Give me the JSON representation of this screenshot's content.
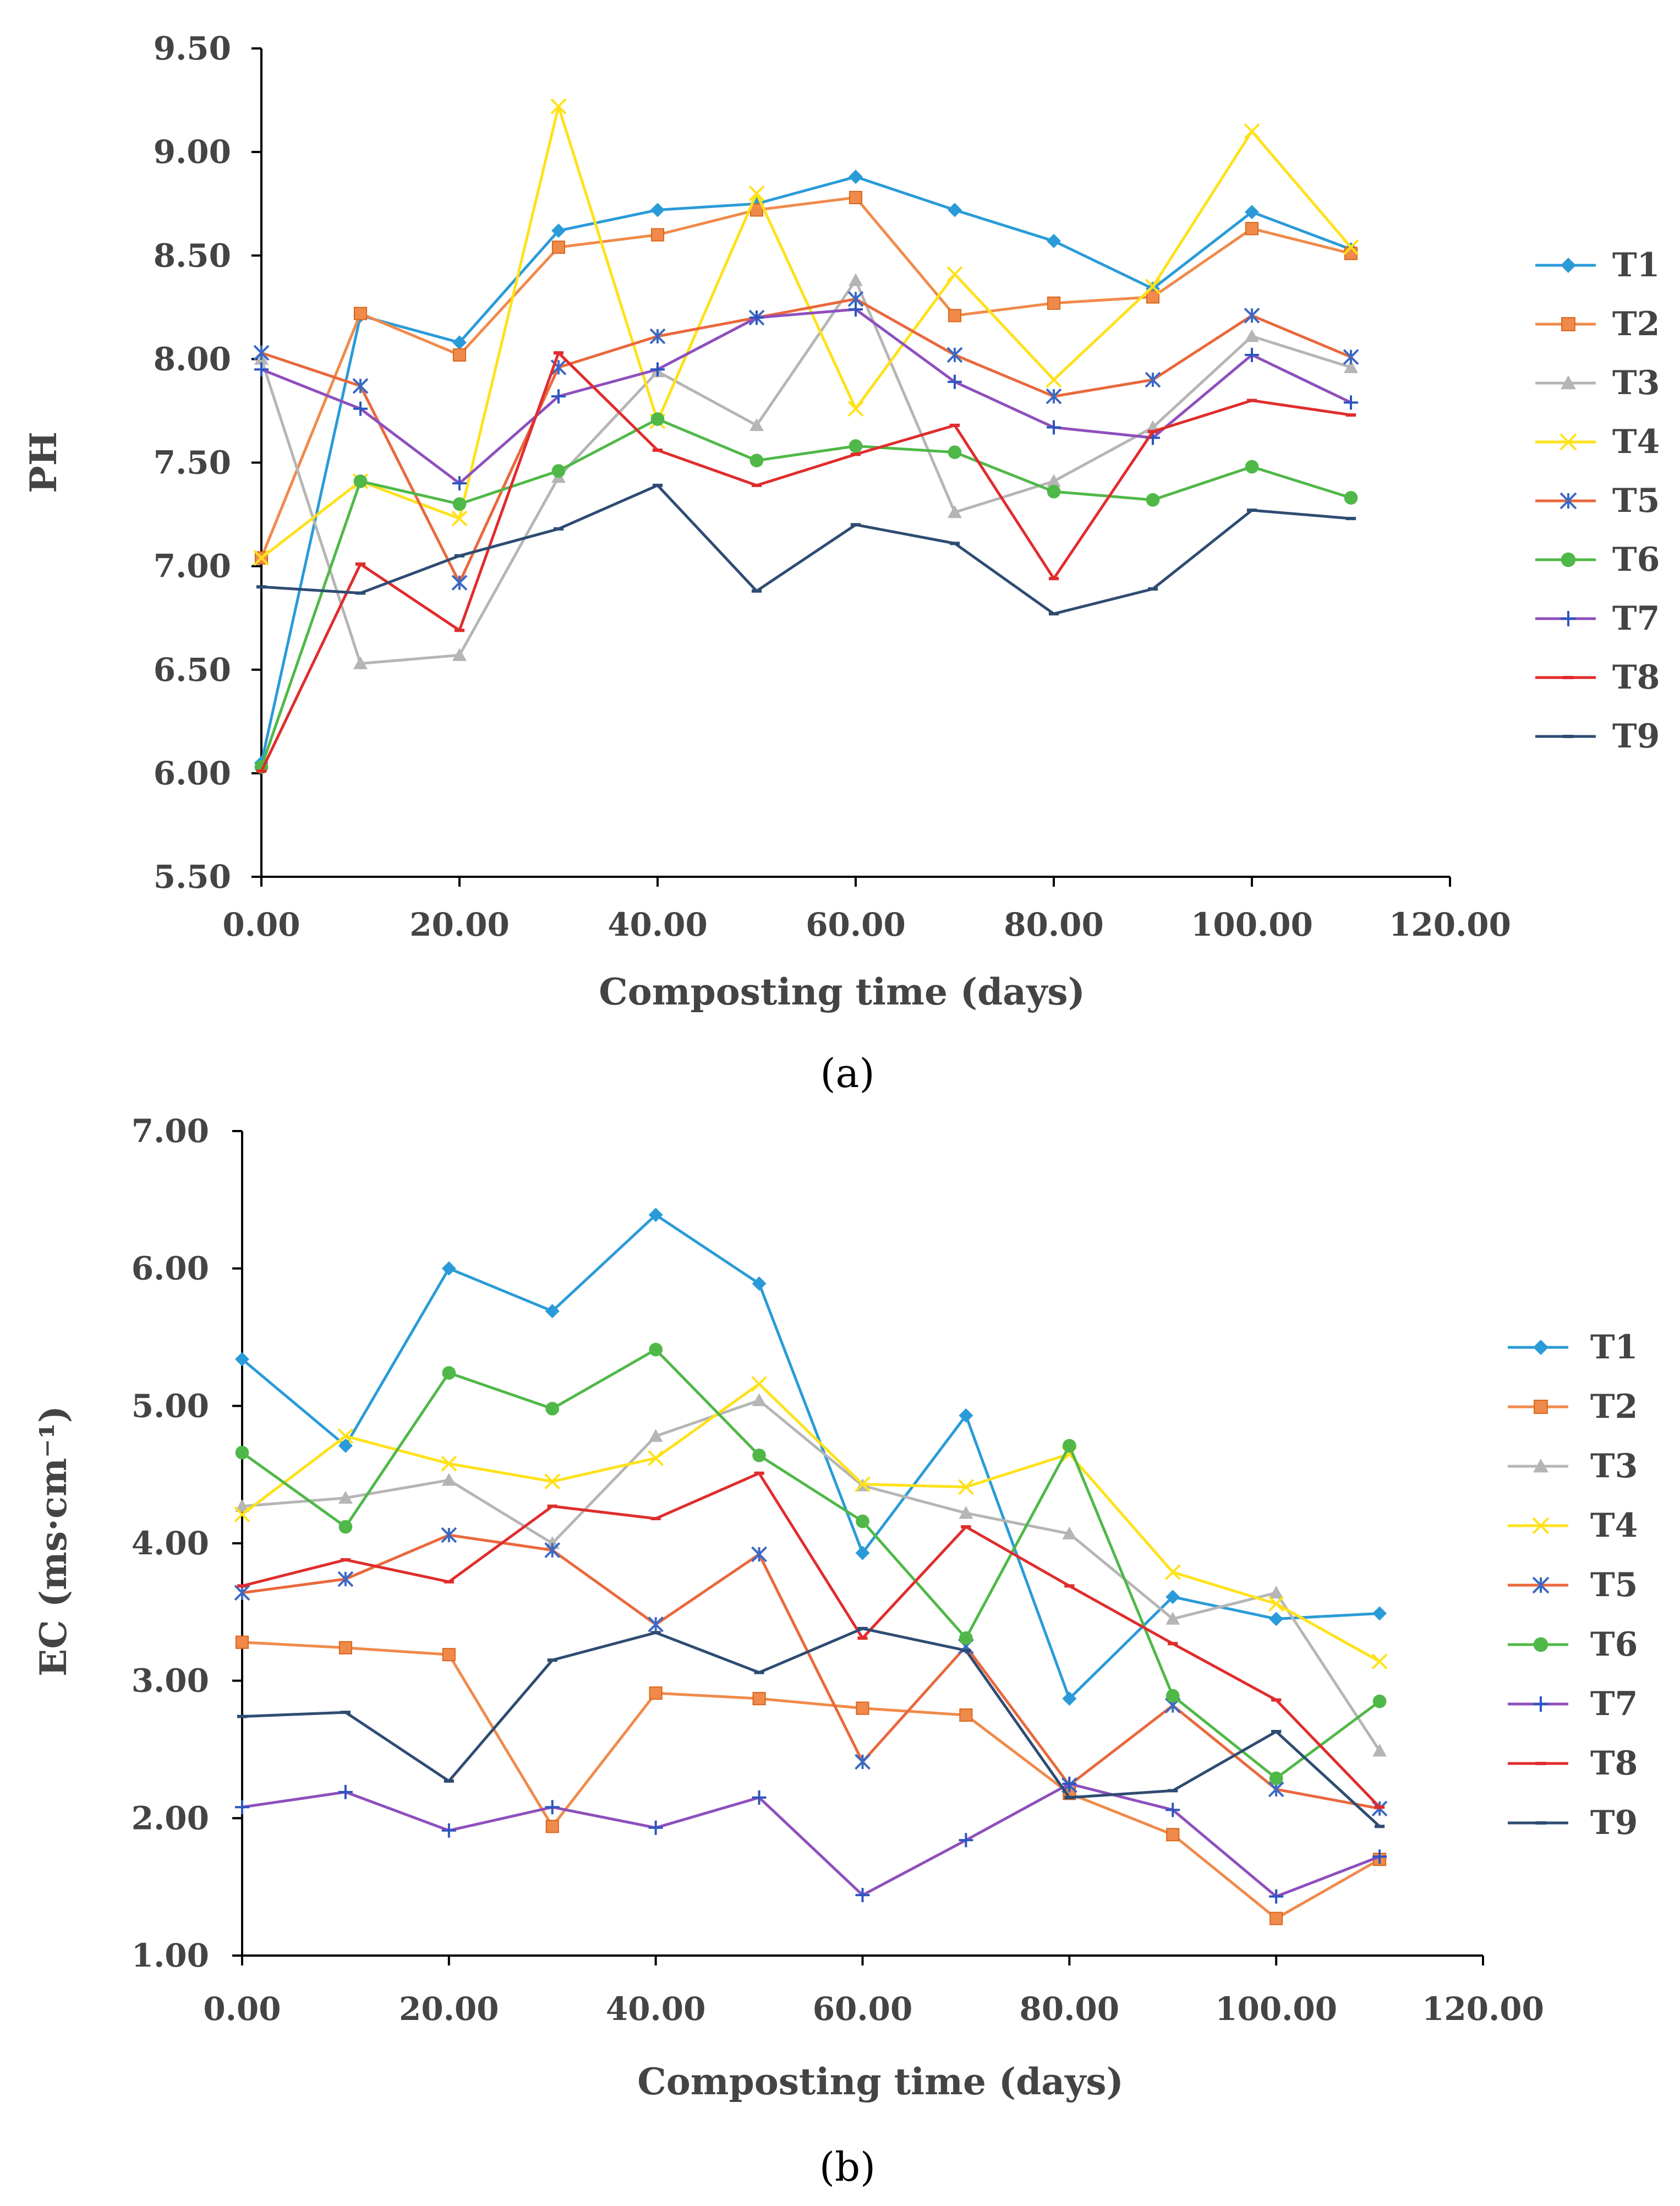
{
  "colors": {
    "T1": "#2a9bd8",
    "T2": "#f08a4b",
    "T3": "#b5b5b5",
    "T4": "#ffe11a",
    "T5": "#e9683c",
    "T6": "#50b848",
    "T7": "#8e4fbd",
    "T8": "#e02c2c",
    "T9": "#2e4c72"
  },
  "chart_data": [
    {
      "type": "line",
      "caption": "(a)",
      "caption_letter": "a",
      "title": "",
      "xlabel": "Composting time (days)",
      "ylabel": "PH",
      "xlim": [
        0,
        120
      ],
      "ylim": [
        5.5,
        9.5
      ],
      "xticks": [
        "0.00",
        "20.00",
        "40.00",
        "60.00",
        "80.00",
        "100.00",
        "120.00"
      ],
      "yticks": [
        "5.50",
        "6.00",
        "6.50",
        "7.00",
        "7.50",
        "8.00",
        "8.50",
        "9.00",
        "9.50"
      ],
      "legend_position": "right",
      "x": [
        0,
        10,
        20,
        30,
        40,
        50,
        60,
        70,
        80,
        90,
        100,
        110
      ],
      "series": [
        {
          "name": "T1",
          "marker": "diamond",
          "values": [
            6.05,
            8.21,
            8.08,
            8.62,
            8.72,
            8.75,
            8.88,
            8.72,
            8.57,
            8.34,
            8.71,
            8.53
          ]
        },
        {
          "name": "T2",
          "marker": "square",
          "values": [
            7.04,
            8.22,
            8.02,
            8.54,
            8.6,
            8.72,
            8.78,
            8.21,
            8.27,
            8.3,
            8.63,
            8.51
          ]
        },
        {
          "name": "T3",
          "marker": "triangle",
          "values": [
            8.0,
            6.53,
            6.57,
            7.43,
            7.94,
            7.68,
            8.38,
            7.26,
            7.41,
            7.67,
            8.11,
            7.96
          ]
        },
        {
          "name": "T4",
          "marker": "x",
          "values": [
            7.04,
            7.41,
            7.23,
            9.22,
            7.7,
            8.8,
            7.76,
            8.41,
            7.9,
            8.35,
            9.1,
            8.54
          ]
        },
        {
          "name": "T5",
          "marker": "star",
          "values": [
            8.03,
            7.87,
            6.92,
            7.96,
            8.11,
            8.2,
            8.29,
            8.02,
            7.82,
            7.9,
            8.21,
            8.01
          ]
        },
        {
          "name": "T6",
          "marker": "circle",
          "values": [
            6.03,
            7.41,
            7.3,
            7.46,
            7.71,
            7.51,
            7.58,
            7.55,
            7.36,
            7.32,
            7.48,
            7.33
          ]
        },
        {
          "name": "T7",
          "marker": "plus",
          "values": [
            7.95,
            7.76,
            7.4,
            7.82,
            7.95,
            8.2,
            8.24,
            7.89,
            7.67,
            7.62,
            8.02,
            7.79
          ]
        },
        {
          "name": "T8",
          "marker": "dash",
          "values": [
            6.01,
            7.01,
            6.69,
            8.03,
            7.56,
            7.39,
            7.54,
            7.68,
            6.94,
            7.65,
            7.8,
            7.73
          ]
        },
        {
          "name": "T9",
          "marker": "dash",
          "values": [
            6.9,
            6.87,
            7.05,
            7.18,
            7.39,
            6.88,
            7.2,
            7.11,
            6.77,
            6.89,
            7.27,
            7.23
          ]
        }
      ]
    },
    {
      "type": "line",
      "caption": "(b)",
      "caption_letter": "b",
      "title": "",
      "xlabel": "Composting time (days)",
      "ylabel": "EC (ms·cm⁻¹)",
      "xlim": [
        0,
        120
      ],
      "ylim": [
        1,
        7
      ],
      "xticks": [
        "0.00",
        "20.00",
        "40.00",
        "60.00",
        "80.00",
        "100.00",
        "120.00"
      ],
      "yticks": [
        "1.00",
        "2.00",
        "3.00",
        "4.00",
        "5.00",
        "6.00",
        "7.00"
      ],
      "legend_position": "right",
      "x": [
        0,
        10,
        20,
        30,
        40,
        50,
        60,
        70,
        80,
        90,
        100,
        110
      ],
      "series": [
        {
          "name": "T1",
          "marker": "diamond",
          "values": [
            5.34,
            4.71,
            6.0,
            5.69,
            6.39,
            5.89,
            3.93,
            4.93,
            2.87,
            3.61,
            3.45,
            3.49
          ]
        },
        {
          "name": "T2",
          "marker": "square",
          "values": [
            3.28,
            3.24,
            3.19,
            1.94,
            2.91,
            2.87,
            2.8,
            2.75,
            2.18,
            1.88,
            1.27,
            1.7
          ]
        },
        {
          "name": "T3",
          "marker": "triangle",
          "values": [
            4.27,
            4.33,
            4.46,
            4.0,
            4.78,
            5.04,
            4.42,
            4.22,
            4.07,
            3.45,
            3.64,
            2.49
          ]
        },
        {
          "name": "T4",
          "marker": "x",
          "values": [
            4.21,
            4.78,
            4.58,
            4.45,
            4.62,
            5.16,
            4.43,
            4.41,
            4.65,
            3.79,
            3.56,
            3.14
          ]
        },
        {
          "name": "T5",
          "marker": "star",
          "values": [
            3.64,
            3.74,
            4.06,
            3.95,
            3.41,
            3.92,
            2.41,
            3.25,
            2.24,
            2.82,
            2.21,
            2.07
          ]
        },
        {
          "name": "T6",
          "marker": "circle",
          "values": [
            4.66,
            4.12,
            5.24,
            4.98,
            5.41,
            4.64,
            4.16,
            3.31,
            4.71,
            2.89,
            2.29,
            2.85
          ]
        },
        {
          "name": "T7",
          "marker": "plus",
          "values": [
            2.08,
            2.19,
            1.91,
            2.08,
            1.93,
            2.15,
            1.44,
            1.84,
            2.25,
            2.06,
            1.43,
            1.72
          ]
        },
        {
          "name": "T8",
          "marker": "dash",
          "values": [
            3.69,
            3.88,
            3.72,
            4.27,
            4.18,
            4.51,
            3.31,
            4.12,
            3.69,
            3.27,
            2.86,
            2.08
          ]
        },
        {
          "name": "T9",
          "marker": "dash",
          "values": [
            2.74,
            2.77,
            2.27,
            3.15,
            3.35,
            3.06,
            3.38,
            3.22,
            2.15,
            2.2,
            2.63,
            1.94
          ]
        }
      ]
    }
  ]
}
